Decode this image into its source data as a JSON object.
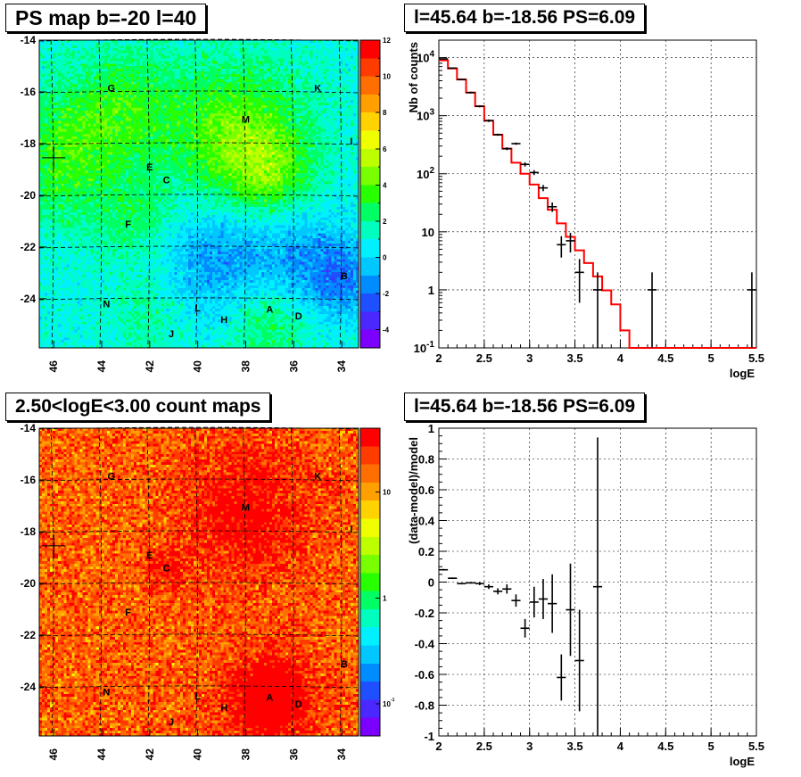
{
  "chart_data": [
    {
      "type": "heatmap",
      "title": "PS map b=-20 l=40",
      "x_ticks": [
        "46",
        "44",
        "42",
        "40",
        "38",
        "36",
        "34"
      ],
      "y_ticks": [
        "-14",
        "-16",
        "-18",
        "-20",
        "-22",
        "-24"
      ],
      "xlim": [
        46.6,
        33.3
      ],
      "ylim": [
        -25.9,
        -14
      ],
      "zlim": [
        -5,
        12
      ],
      "colorbar_ticks": [
        "12",
        "10",
        "8",
        "6",
        "4",
        "2",
        "0",
        "-2",
        "-4"
      ],
      "marker": {
        "l": 46.0,
        "b": -18.55
      },
      "sources": [
        {
          "label": "G",
          "l": 43.6,
          "b": -15.85
        },
        {
          "label": "K",
          "l": 35.0,
          "b": -15.85
        },
        {
          "label": "M",
          "l": 38.0,
          "b": -17.05
        },
        {
          "label": "I",
          "l": 33.6,
          "b": -17.9
        },
        {
          "label": "E",
          "l": 42.0,
          "b": -18.9
        },
        {
          "label": "C",
          "l": 41.3,
          "b": -19.4
        },
        {
          "label": "F",
          "l": 42.9,
          "b": -21.1
        },
        {
          "label": "B",
          "l": 33.9,
          "b": -23.1
        },
        {
          "label": "N",
          "l": 43.8,
          "b": -24.2
        },
        {
          "label": "L",
          "l": 40.0,
          "b": -24.35
        },
        {
          "label": "A",
          "l": 37.0,
          "b": -24.4
        },
        {
          "label": "D",
          "l": 35.8,
          "b": -24.65
        },
        {
          "label": "H",
          "l": 38.9,
          "b": -24.8
        },
        {
          "label": "J",
          "l": 41.1,
          "b": -25.35
        }
      ],
      "hotspots": [
        {
          "l": 38.3,
          "b": -17.8,
          "amp": 3.5,
          "r": 2.0
        },
        {
          "l": 37.0,
          "b": -19.3,
          "amp": 2.0,
          "r": 1.2
        },
        {
          "l": 45.5,
          "b": -18.5,
          "amp": 2.5,
          "r": 1.8
        },
        {
          "l": 43.0,
          "b": -16.5,
          "amp": 2.0,
          "r": 1.6
        },
        {
          "l": 42.5,
          "b": -21.0,
          "amp": 1.5,
          "r": 1.1
        },
        {
          "l": 37.2,
          "b": -24.8,
          "amp": 2.2,
          "r": 1.3
        },
        {
          "l": 42.0,
          "b": -24.5,
          "amp": 1.3,
          "r": 1.2
        },
        {
          "l": 39.0,
          "b": -22.6,
          "amp": -2.4,
          "r": 1.8
        },
        {
          "l": 35.5,
          "b": -22.5,
          "amp": -1.8,
          "r": 1.5
        },
        {
          "l": 34.0,
          "b": -23.3,
          "amp": -2.0,
          "r": 1.0
        }
      ]
    },
    {
      "type": "line",
      "title": "l=45.64 b=-18.56 PS=6.09",
      "xlabel": "logE",
      "ylabel": "Nb of counts",
      "xlim": [
        2,
        5.5
      ],
      "ylim": [
        0.1,
        20000
      ],
      "yscale": "log",
      "grid": true,
      "x_ticks": [
        "2",
        "2.5",
        "3",
        "3.5",
        "4",
        "4.5",
        "5",
        "5.5"
      ],
      "y_ticks": [
        {
          "base": "10",
          "exp": "4",
          "v": 10000
        },
        {
          "base": "10",
          "exp": "3",
          "v": 1000
        },
        {
          "base": "10",
          "exp": "2",
          "v": 100
        },
        {
          "base": "10",
          "exp": "",
          "v": 10
        },
        {
          "base": "1",
          "exp": "",
          "v": 1
        },
        {
          "base": "10",
          "exp": "-1",
          "v": 0.1
        }
      ],
      "series": [
        {
          "type": "step",
          "color": "#ff0000",
          "edges": [
            2.0,
            2.1,
            2.2,
            2.3,
            2.4,
            2.5,
            2.6,
            2.7,
            2.8,
            2.9,
            3.0,
            3.1,
            3.2,
            3.3,
            3.4,
            3.5,
            3.6,
            3.7,
            3.8,
            3.9,
            4.0,
            4.1,
            4.2,
            4.3,
            4.4,
            4.5,
            4.6,
            4.7,
            4.8,
            4.9,
            5.0,
            5.1,
            5.2,
            5.3,
            5.4,
            5.5
          ],
          "values": [
            9000,
            6500,
            4200,
            2500,
            1450,
            820,
            470,
            270,
            155,
            100,
            65,
            38,
            24,
            14,
            8.2,
            4.8,
            2.9,
            1.7,
            0.98,
            0.56,
            0.2,
            0.1,
            0.1,
            0.1,
            0.1,
            0.1,
            0.1,
            0.1,
            0.1,
            0.1,
            0.1,
            0.1,
            0.1,
            0.1,
            0.1
          ]
        },
        {
          "type": "errorbar",
          "color": "#000000",
          "points": [
            {
              "x": 2.05,
              "y": 9500,
              "lo": 9300,
              "hi": 9700
            },
            {
              "x": 2.15,
              "y": 6600,
              "lo": 6450,
              "hi": 6750
            },
            {
              "x": 2.25,
              "y": 4200,
              "lo": 4080,
              "hi": 4320
            },
            {
              "x": 2.35,
              "y": 2500,
              "lo": 2410,
              "hi": 2590
            },
            {
              "x": 2.45,
              "y": 1450,
              "lo": 1390,
              "hi": 1510
            },
            {
              "x": 2.55,
              "y": 820,
              "lo": 780,
              "hi": 860
            },
            {
              "x": 2.65,
              "y": 470,
              "lo": 450,
              "hi": 490
            },
            {
              "x": 2.75,
              "y": 270,
              "lo": 255,
              "hi": 285
            },
            {
              "x": 2.85,
              "y": 330,
              "lo": 315,
              "hi": 345
            },
            {
              "x": 2.95,
              "y": 145,
              "lo": 133,
              "hi": 157
            },
            {
              "x": 3.05,
              "y": 105,
              "lo": 95,
              "hi": 115
            },
            {
              "x": 3.15,
              "y": 57,
              "lo": 50,
              "hi": 64
            },
            {
              "x": 3.25,
              "y": 27,
              "lo": 22,
              "hi": 32
            },
            {
              "x": 3.35,
              "y": 6.0,
              "lo": 3.6,
              "hi": 8.4
            },
            {
              "x": 3.45,
              "y": 7.0,
              "lo": 4.4,
              "hi": 9.6
            },
            {
              "x": 3.55,
              "y": 2.0,
              "lo": 0.6,
              "hi": 3.4
            },
            {
              "x": 3.75,
              "y": 1.0,
              "lo": 0.1,
              "hi": 2.0
            },
            {
              "x": 4.35,
              "y": 1.0,
              "lo": 0.1,
              "hi": 2.0
            },
            {
              "x": 5.45,
              "y": 1.0,
              "lo": 0.1,
              "hi": 2.0
            }
          ]
        }
      ]
    },
    {
      "type": "heatmap",
      "title": "2.50<logE<3.00 count maps",
      "x_ticks": [
        "46",
        "44",
        "42",
        "40",
        "38",
        "36",
        "34"
      ],
      "y_ticks": [
        "-14",
        "-16",
        "-18",
        "-20",
        "-22",
        "-24"
      ],
      "xlim": [
        46.6,
        33.3
      ],
      "ylim": [
        -25.9,
        -14
      ],
      "zscale": "log",
      "colorbar_ticks": [
        {
          "base": "10",
          "exp": "",
          "v": 10
        },
        {
          "base": "1",
          "exp": "",
          "v": 1
        },
        {
          "base": "10",
          "exp": "-1",
          "v": 0.1
        }
      ],
      "marker": {
        "l": 46.0,
        "b": -18.55
      },
      "sources": [
        {
          "label": "G",
          "l": 43.6,
          "b": -15.85
        },
        {
          "label": "K",
          "l": 35.0,
          "b": -15.85
        },
        {
          "label": "M",
          "l": 38.0,
          "b": -17.05
        },
        {
          "label": "I",
          "l": 33.6,
          "b": -17.9
        },
        {
          "label": "E",
          "l": 42.0,
          "b": -18.9
        },
        {
          "label": "C",
          "l": 41.3,
          "b": -19.4
        },
        {
          "label": "F",
          "l": 42.9,
          "b": -21.1
        },
        {
          "label": "B",
          "l": 33.9,
          "b": -23.1
        },
        {
          "label": "N",
          "l": 43.8,
          "b": -24.2
        },
        {
          "label": "L",
          "l": 40.0,
          "b": -24.35
        },
        {
          "label": "A",
          "l": 37.0,
          "b": -24.4
        },
        {
          "label": "D",
          "l": 35.8,
          "b": -24.65
        },
        {
          "label": "H",
          "l": 38.9,
          "b": -24.8
        },
        {
          "label": "J",
          "l": 41.1,
          "b": -25.35
        }
      ],
      "hotspots": [
        {
          "l": 37.0,
          "b": -24.4,
          "amp": 1.5,
          "r": 0.6
        },
        {
          "l": 38.0,
          "b": -17.2,
          "amp": 0.55,
          "r": 1.8
        },
        {
          "l": 41.3,
          "b": -19.4,
          "amp": 0.4,
          "r": 0.6
        },
        {
          "l": 37.0,
          "b": -24.6,
          "amp": 0.6,
          "r": 1.4
        }
      ]
    },
    {
      "type": "scatter",
      "title": "l=45.64 b=-18.56 PS=6.09",
      "xlabel": "logE",
      "ylabel": "(data-model)/model",
      "xlim": [
        2,
        5.5
      ],
      "ylim": [
        -1,
        1
      ],
      "grid": true,
      "x_ticks": [
        "2",
        "2.5",
        "3",
        "3.5",
        "4",
        "4.5",
        "5",
        "5.5"
      ],
      "y_ticks": [
        "1",
        "0.8",
        "0.6",
        "0.4",
        "0.2",
        "0",
        "-0.2",
        "-0.4",
        "-0.6",
        "-0.8",
        "-1"
      ],
      "points": [
        {
          "x": 2.05,
          "y": 0.08,
          "lo": 0.075,
          "hi": 0.085
        },
        {
          "x": 2.15,
          "y": 0.025,
          "lo": 0.02,
          "hi": 0.03
        },
        {
          "x": 2.25,
          "y": -0.01,
          "lo": -0.015,
          "hi": -0.005
        },
        {
          "x": 2.35,
          "y": -0.005,
          "lo": -0.01,
          "hi": 0.0
        },
        {
          "x": 2.45,
          "y": -0.01,
          "lo": -0.02,
          "hi": 0.0
        },
        {
          "x": 2.55,
          "y": -0.03,
          "lo": -0.045,
          "hi": -0.015
        },
        {
          "x": 2.65,
          "y": -0.06,
          "lo": -0.08,
          "hi": -0.04
        },
        {
          "x": 2.75,
          "y": -0.045,
          "lo": -0.075,
          "hi": -0.015
        },
        {
          "x": 2.85,
          "y": -0.12,
          "lo": -0.16,
          "hi": -0.08
        },
        {
          "x": 2.95,
          "y": -0.3,
          "lo": -0.36,
          "hi": -0.24
        },
        {
          "x": 3.05,
          "y": -0.13,
          "lo": -0.23,
          "hi": -0.03
        },
        {
          "x": 3.15,
          "y": -0.11,
          "lo": -0.24,
          "hi": 0.02
        },
        {
          "x": 3.25,
          "y": -0.14,
          "lo": -0.33,
          "hi": 0.05
        },
        {
          "x": 3.35,
          "y": -0.62,
          "lo": -0.77,
          "hi": -0.47
        },
        {
          "x": 3.45,
          "y": -0.18,
          "lo": -0.48,
          "hi": 0.12
        },
        {
          "x": 3.55,
          "y": -0.51,
          "lo": -0.84,
          "hi": -0.18
        },
        {
          "x": 3.75,
          "y": -0.03,
          "lo": -1.0,
          "hi": 0.94
        }
      ]
    }
  ]
}
